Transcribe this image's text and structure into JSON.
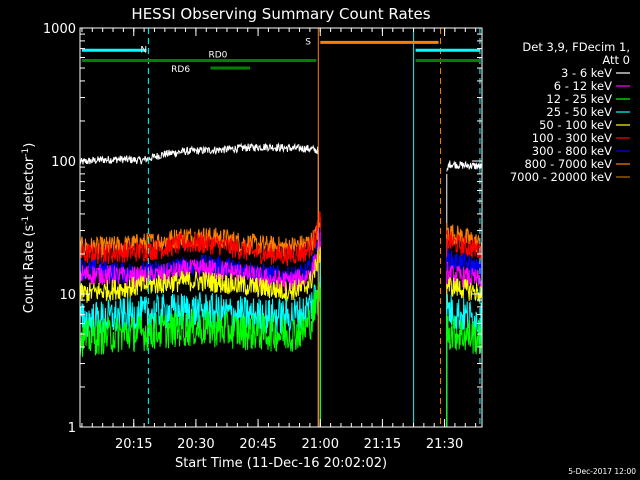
{
  "chart_data": {
    "type": "line",
    "title": "HESSI Observing Summary Count Rates",
    "xlabel": "Start Time (11-Dec-16 20:02:02)",
    "ylabel": "Count Rate (s⁻¹ detector⁻¹)",
    "ylabel_main": "Count Rate (s",
    "ylabel_sup1": "-1",
    "ylabel_mid": " detector",
    "ylabel_sup2": "-1",
    "ylabel_end": ")",
    "yscale": "log",
    "ylim": [
      1,
      1000
    ],
    "xlim_minutes": [
      0,
      97
    ],
    "xticks": [
      {
        "label": "20:15",
        "minutes": 12.97
      },
      {
        "label": "20:30",
        "minutes": 27.97
      },
      {
        "label": "20:45",
        "minutes": 42.97
      },
      {
        "label": "21:00",
        "minutes": 57.97
      },
      {
        "label": "21:15",
        "minutes": 72.97
      },
      {
        "label": "21:30",
        "minutes": 87.97
      }
    ],
    "yticks": [
      {
        "label": "1000",
        "value": 1000
      },
      {
        "label": "100",
        "value": 100
      },
      {
        "label": "10",
        "value": 10
      },
      {
        "label": "1",
        "value": 1
      }
    ],
    "legend": {
      "placement": "right",
      "header": [
        "Det 3,9, FDecim 1,",
        "Att 0"
      ],
      "entries": [
        {
          "label": "3 - 6 keV",
          "color": "#000000"
        },
        {
          "label": "6 - 12 keV",
          "color": "#ff00ff"
        },
        {
          "label": "12 - 25 keV",
          "color": "#00ff00"
        },
        {
          "label": "25 - 50 keV",
          "color": "#00ffff"
        },
        {
          "label": "50 - 100 keV",
          "color": "#ffff00"
        },
        {
          "label": "100 - 300 keV",
          "color": "#ff0000"
        },
        {
          "label": "300 - 800 keV",
          "color": "#0000ff"
        },
        {
          "label": "800 - 7000 keV",
          "color": "#ff8000"
        },
        {
          "label": "7000 - 20000 keV",
          "color": "#b07000"
        }
      ]
    },
    "series": [
      {
        "color": "#000000",
        "segments": [
          {
            "x": [
              0,
              5,
              10,
              15,
              20,
              25,
              30,
              35,
              40,
              45,
              50,
              55,
              57.5
            ],
            "y": [
              98,
              102,
              103,
              101,
              112,
              118,
              120,
              122,
              126,
              128,
              125,
              124,
              120
            ]
          },
          {
            "x": [
              88.5,
              89,
              92,
              95,
              97
            ],
            "y": [
              80,
              95,
              93,
              92,
              90
            ]
          }
        ]
      },
      {
        "color": "#ff8000",
        "segments": [
          {
            "x": [
              0,
              5,
              10,
              15,
              20,
              25,
              30,
              35,
              40,
              45,
              50,
              54,
              56,
              57,
              58
            ],
            "y": [
              22.5,
              22.5,
              23,
              24,
              25,
              27,
              27,
              26,
              24,
              23,
              22.5,
              23.5,
              25,
              28,
              34
            ]
          },
          {
            "x": [
              88.5,
              89,
              92,
              95,
              97
            ],
            "y": [
              30,
              29,
              27,
              25,
              23
            ]
          }
        ]
      },
      {
        "color": "#ff0000",
        "segments": [
          {
            "x": [
              0,
              5,
              10,
              15,
              20,
              25,
              30,
              35,
              40,
              45,
              50,
              54,
              56,
              57,
              58
            ],
            "y": [
              20,
              20,
              20.5,
              21,
              22,
              24,
              24,
              23,
              21,
              20,
              19.5,
              20.5,
              23,
              27,
              38
            ]
          },
          {
            "x": [
              88.5,
              89,
              92,
              95,
              97
            ],
            "y": [
              26,
              25,
              23,
              22,
              21
            ]
          }
        ]
      },
      {
        "color": "#0000ff",
        "segments": [
          {
            "x": [
              0,
              5,
              10,
              15,
              20,
              25,
              30,
              35,
              40,
              45,
              50,
              54,
              56,
              57,
              58
            ],
            "y": [
              15.5,
              15,
              14.5,
              14.5,
              15,
              16,
              16.5,
              16,
              15,
              14,
              13.5,
              14,
              16,
              20,
              28
            ]
          },
          {
            "x": [
              88.5,
              89,
              92,
              95,
              97
            ],
            "y": [
              19,
              18,
              17,
              16,
              15
            ]
          }
        ]
      },
      {
        "color": "#ff00ff",
        "segments": [
          {
            "x": [
              0,
              5,
              10,
              15,
              20,
              25,
              30,
              35,
              40,
              45,
              50,
              54,
              56,
              57,
              58
            ],
            "y": [
              14,
              14,
              13.5,
              13.5,
              14,
              15,
              15.5,
              15,
              14,
              13,
              12.5,
              13,
              15,
              18,
              25
            ]
          },
          {
            "x": [
              88.5,
              89,
              92,
              95,
              97
            ],
            "y": [
              15,
              14,
              13.5,
              13,
              12.5
            ]
          }
        ]
      },
      {
        "color": "#ffff00",
        "segments": [
          {
            "x": [
              0,
              5,
              10,
              15,
              20,
              25,
              30,
              35,
              40,
              45,
              50,
              54,
              56,
              57,
              58
            ],
            "y": [
              10,
              10.5,
              11,
              11.5,
              12,
              12.5,
              12.5,
              12,
              11.5,
              11,
              10.5,
              11,
              13,
              16,
              22
            ]
          },
          {
            "x": [
              88.5,
              89,
              92,
              95,
              97
            ],
            "y": [
              12,
              11.5,
              11,
              10.5,
              10
            ]
          }
        ]
      },
      {
        "color": "#00ffff",
        "segments": [
          {
            "x": [
              0,
              5,
              10,
              15,
              20,
              25,
              30,
              35,
              40,
              45,
              50,
              54,
              56,
              57,
              58
            ],
            "y": [
              6.3,
              6.5,
              6.8,
              7,
              7.3,
              7.5,
              7.5,
              7.2,
              7,
              6.8,
              6.8,
              7.2,
              8.5,
              10.5,
              14
            ]
          },
          {
            "x": [
              88.5,
              89,
              92,
              95,
              97
            ],
            "y": [
              8,
              7.5,
              7,
              6.5,
              6.2
            ]
          }
        ]
      },
      {
        "color": "#00ff00",
        "segments": [
          {
            "x": [
              0,
              5,
              10,
              15,
              20,
              25,
              30,
              35,
              40,
              45,
              50,
              54,
              56,
              57,
              58
            ],
            "y": [
              4.6,
              4.8,
              5,
              5.1,
              5.3,
              5.5,
              5.5,
              5.4,
              5.2,
              5.1,
              5,
              5.3,
              6.5,
              8.5,
              11
            ]
          },
          {
            "x": [
              88.5,
              89,
              92,
              95,
              97
            ],
            "y": [
              5.5,
              5.2,
              5,
              4.8,
              4.6
            ]
          }
        ]
      }
    ],
    "annotations": {
      "saa_lines": [
        {
          "label": "N",
          "color": "#00ffff",
          "y": 680,
          "x": [
            0,
            16.5
          ]
        },
        {
          "label": "",
          "color": "#00ffff",
          "y": 680,
          "x": [
            80.5,
            97
          ]
        },
        {
          "label": "S",
          "color": "#ff8000",
          "y": 780,
          "x": [
            57.5,
            87
          ]
        }
      ],
      "night_lines": [
        {
          "label": "RD0",
          "color": "#008000",
          "y": 570,
          "x": [
            0,
            57.5
          ]
        },
        {
          "label": "RD0",
          "color": "#008000",
          "y": 570,
          "x": [
            80.5,
            97
          ]
        },
        {
          "label": "RD6",
          "color": "#008000",
          "y": 500,
          "x": [
            31,
            41.5
          ]
        }
      ],
      "rd0_label": "RD0",
      "rd6_label": "RD6",
      "n_label": "N",
      "s_label": "S",
      "vlines": [
        {
          "x": 0,
          "color": "#00ffff",
          "style": "solid"
        },
        {
          "x": 16.5,
          "color": "#00ffff",
          "style": "dashed"
        },
        {
          "x": 57.5,
          "color": "#ff8000",
          "style": "solid"
        },
        {
          "x": 80.5,
          "color": "#00ffff",
          "style": "solid"
        },
        {
          "x": 87,
          "color": "#ff8000",
          "style": "dashed"
        },
        {
          "x": 96.5,
          "color": "#00ffff",
          "style": "dashed"
        }
      ]
    }
  },
  "footer_date": "5-Dec-2017 12:00"
}
